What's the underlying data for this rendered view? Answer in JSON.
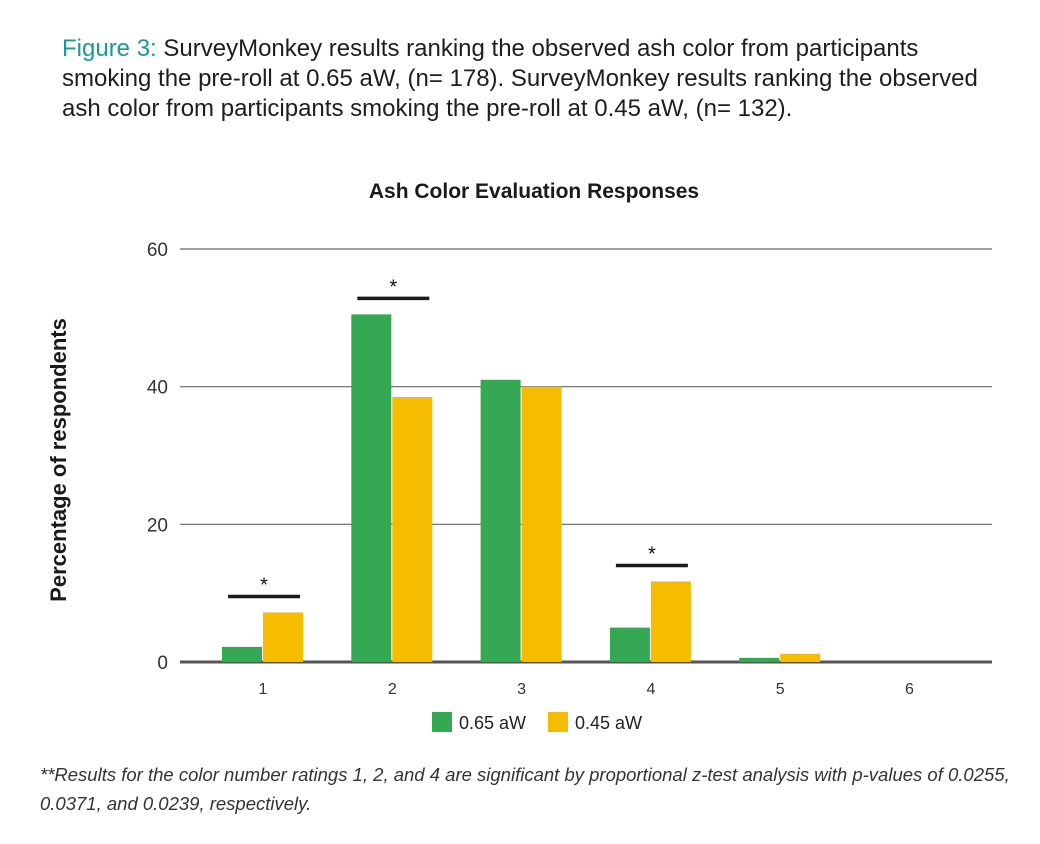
{
  "caption": {
    "label": "Figure 3:",
    "text": " SurveyMonkey results ranking the observed ash color from participants smoking the pre-roll at 0.65 aW, (n= 178). SurveyMonkey results ranking the observed ash color from participants smoking the pre-roll at 0.45 aW, (n= 132)."
  },
  "footnote": "**Results for the color number ratings 1, 2, and 4 are significant by proportional z-test analysis with p-values of 0.0255, 0.0371, and 0.0239, respectively.",
  "chart_data": {
    "type": "bar",
    "title": "Ash Color Evaluation Responses",
    "xlabel": "",
    "ylabel": "Percentage of respondents",
    "categories": [
      "1",
      "2",
      "3",
      "4",
      "5",
      "6"
    ],
    "series": [
      {
        "name": "0.65 aW",
        "color": "#34a853",
        "values": [
          2.2,
          50.5,
          41.0,
          5.0,
          0.6,
          0
        ]
      },
      {
        "name": "0.45 aW",
        "color": "#f6bd00",
        "values": [
          7.2,
          38.5,
          40.0,
          11.7,
          1.2,
          0
        ]
      }
    ],
    "ylim": [
      0,
      60
    ],
    "yticks": [
      0,
      20,
      40,
      60
    ],
    "grid": true,
    "legend": "bottom",
    "significance": [
      {
        "category": "1",
        "marker": "*"
      },
      {
        "category": "2",
        "marker": "*"
      },
      {
        "category": "4",
        "marker": "*"
      }
    ]
  }
}
